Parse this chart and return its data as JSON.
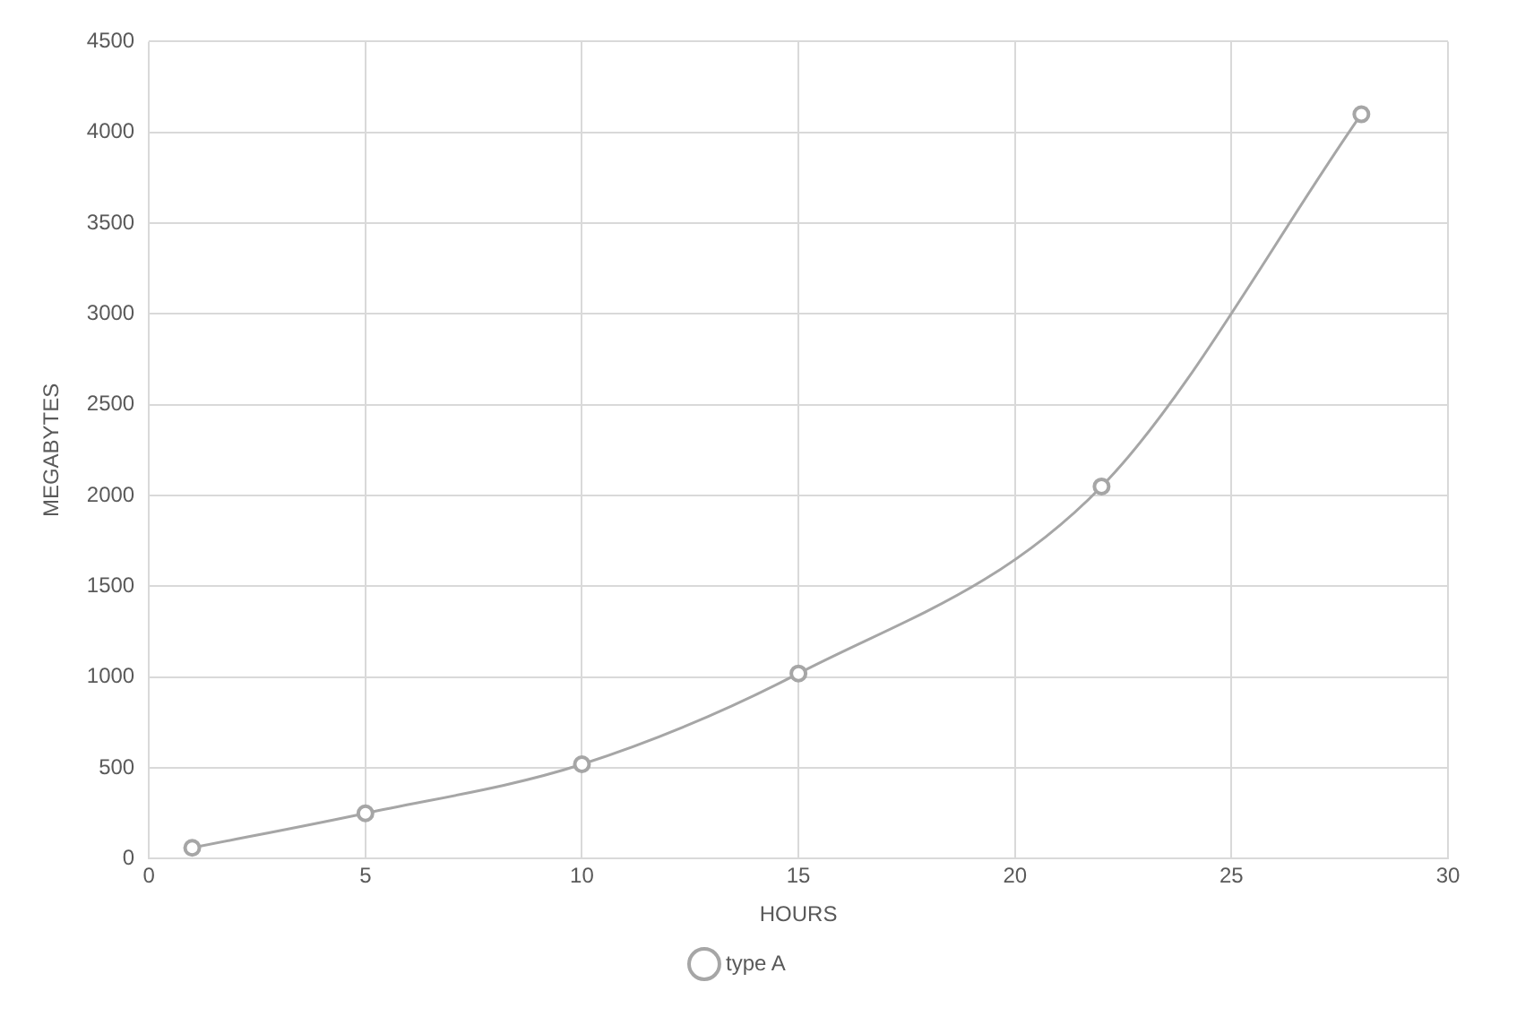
{
  "chart_data": {
    "type": "line",
    "xlabel": "HOURS",
    "ylabel": "MEGABYTES",
    "x": [
      1,
      5,
      10,
      15,
      22,
      28
    ],
    "series": [
      {
        "name": "type A",
        "color": "#a6a6a6",
        "values": [
          60,
          250,
          520,
          1020,
          2050,
          4100
        ]
      }
    ],
    "xlim": [
      0,
      30
    ],
    "xticks": [
      0,
      5,
      10,
      15,
      20,
      25,
      30
    ],
    "ylim": [
      0,
      4500
    ],
    "yticks": [
      0,
      500,
      1000,
      1500,
      2000,
      2500,
      3000,
      3500,
      4000,
      4500
    ],
    "grid": true,
    "legend": "bottom",
    "marker": "circle",
    "line_style": "solid"
  }
}
